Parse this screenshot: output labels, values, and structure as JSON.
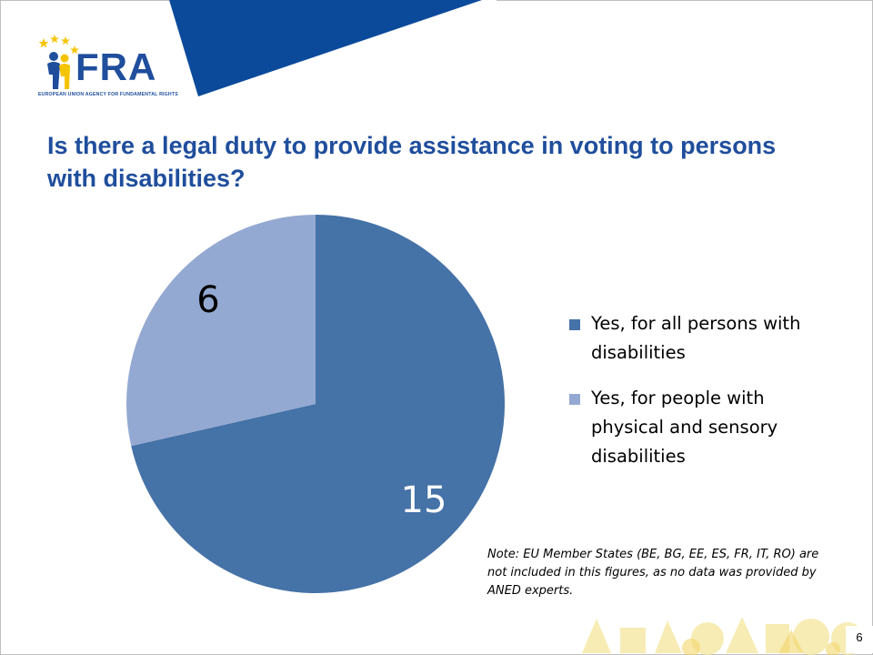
{
  "slide": {
    "logo_text": "FRA",
    "logo_subtext": "EUROPEAN UNION AGENCY FOR FUNDAMENTAL RIGHTS",
    "page_number": "6",
    "brand_color": "#1f4e9c",
    "band_color": "#0b4a9b"
  },
  "chart_data": {
    "type": "pie",
    "title": "Is there a legal duty to provide assistance in voting to persons with disabilities?",
    "series": [
      {
        "name": "Yes, for all persons with disabilities",
        "value": 15,
        "color": "#4572a7"
      },
      {
        "name": "Yes, for people with physical and sensory disabilities",
        "value": 6,
        "color": "#94a9d2"
      }
    ],
    "data_labels": [
      "15",
      "6"
    ],
    "legend_placement": "right",
    "note": "Note: EU Member States (BE, BG, EE, ES, FR, IT, RO) are not included in this figures, as no data was provided by ANED experts."
  }
}
